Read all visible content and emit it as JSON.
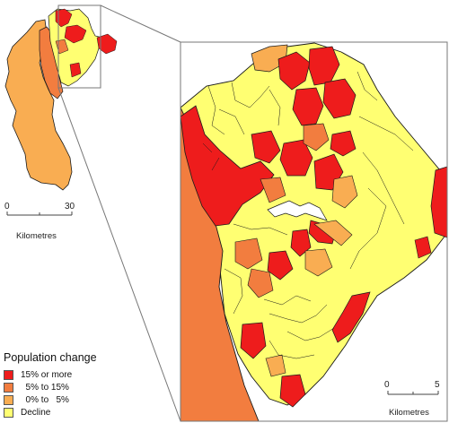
{
  "colors": {
    "red": "#ee1c1c",
    "orange_dark": "#f27d3f",
    "orange_light": "#f9ad52",
    "yellow": "#ffff72",
    "boundary": "#1a1a1a",
    "frame": "#777777"
  },
  "overview_scale": {
    "start": "0",
    "end": "30",
    "unit": "Kilometres"
  },
  "detail_scale": {
    "start": "0",
    "end": "5",
    "unit": "Kilometres"
  },
  "legend": {
    "title": "Population change",
    "items": [
      {
        "label": "15% or more",
        "color": "#ee1c1c"
      },
      {
        "label": "  5% to 15%",
        "color": "#f27d3f"
      },
      {
        "label": "  0% to   5%",
        "color": "#f9ad52"
      },
      {
        "label": "Decline",
        "color": "#ffff72"
      }
    ]
  }
}
